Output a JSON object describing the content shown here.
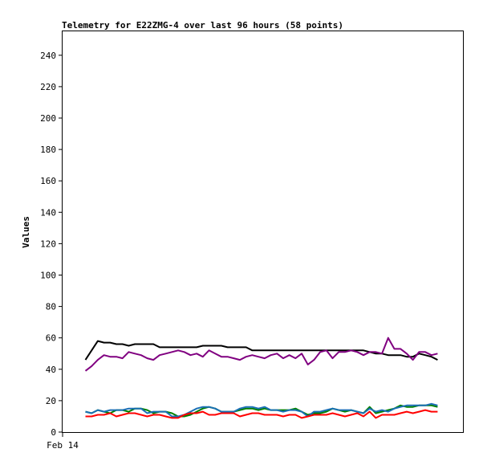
{
  "chart_data": {
    "type": "line",
    "title": "Telemetry for E22ZMG-4 over last 96 hours (58 points)",
    "xlabel": "",
    "ylabel": "Values",
    "ylim": [
      0,
      256
    ],
    "yticks": [
      0,
      20,
      40,
      60,
      80,
      100,
      120,
      140,
      160,
      180,
      200,
      220,
      240
    ],
    "x_tick_labels": [
      "Feb 14"
    ],
    "grid": false,
    "legend": "none",
    "x": [
      0,
      1,
      2,
      3,
      4,
      5,
      6,
      7,
      8,
      9,
      10,
      11,
      12,
      13,
      14,
      15,
      16,
      17,
      18,
      19,
      20,
      21,
      22,
      23,
      24,
      25,
      26,
      27,
      28,
      29,
      30,
      31,
      32,
      33,
      34,
      35,
      36,
      37,
      38,
      39,
      40,
      41,
      42,
      43,
      44,
      45,
      46,
      47,
      48,
      49,
      50,
      51,
      52,
      53,
      54,
      55,
      56,
      57
    ],
    "series": [
      {
        "color": "#000000",
        "values": [
          46,
          52,
          58,
          57,
          57,
          56,
          56,
          55,
          56,
          56,
          56,
          56,
          54,
          54,
          54,
          54,
          54,
          54,
          54,
          55,
          55,
          55,
          55,
          54,
          54,
          54,
          54,
          52,
          52,
          52,
          52,
          52,
          52,
          52,
          52,
          52,
          52,
          52,
          52,
          52,
          52,
          52,
          52,
          52,
          52,
          52,
          51,
          50,
          50,
          49,
          49,
          49,
          48,
          48,
          50,
          49,
          48,
          46
        ]
      },
      {
        "color": "#800080",
        "values": [
          39,
          42,
          46,
          49,
          48,
          48,
          47,
          51,
          50,
          49,
          47,
          46,
          49,
          50,
          51,
          52,
          51,
          49,
          50,
          48,
          52,
          50,
          48,
          48,
          47,
          46,
          48,
          49,
          48,
          47,
          49,
          50,
          47,
          49,
          47,
          50,
          43,
          46,
          51,
          52,
          47,
          51,
          51,
          52,
          51,
          49,
          51,
          51,
          50,
          60,
          53,
          53,
          50,
          46,
          51,
          51,
          49,
          50
        ]
      },
      {
        "color": "#008000",
        "values": [
          13,
          12,
          14,
          13,
          12,
          14,
          14,
          13,
          15,
          15,
          14,
          12,
          13,
          13,
          12,
          10,
          10,
          11,
          13,
          15,
          16,
          15,
          13,
          13,
          13,
          14,
          15,
          15,
          14,
          15,
          14,
          14,
          14,
          14,
          15,
          13,
          11,
          12,
          12,
          13,
          15,
          14,
          13,
          14,
          13,
          12,
          16,
          12,
          13,
          14,
          15,
          17,
          16,
          16,
          17,
          17,
          17,
          16
        ]
      },
      {
        "color": "#1a6fb5",
        "values": [
          13,
          12,
          14,
          13,
          14,
          14,
          14,
          15,
          15,
          15,
          12,
          13,
          13,
          13,
          10,
          10,
          11,
          13,
          15,
          16,
          16,
          15,
          13,
          13,
          13,
          15,
          16,
          16,
          15,
          16,
          14,
          14,
          13,
          14,
          14,
          13,
          10,
          13,
          13,
          14,
          15,
          14,
          14,
          14,
          13,
          12,
          15,
          13,
          14,
          13,
          15,
          16,
          17,
          17,
          17,
          17,
          18,
          17
        ]
      },
      {
        "color": "#ff0000",
        "values": [
          10,
          10,
          11,
          11,
          12,
          10,
          11,
          12,
          12,
          11,
          10,
          11,
          11,
          10,
          9,
          9,
          11,
          12,
          12,
          13,
          11,
          11,
          12,
          12,
          12,
          10,
          11,
          12,
          12,
          11,
          11,
          11,
          10,
          11,
          11,
          9,
          10,
          11,
          11,
          11,
          12,
          11,
          10,
          11,
          12,
          10,
          13,
          9,
          11,
          11,
          11,
          12,
          13,
          12,
          13,
          14,
          13,
          13
        ]
      }
    ]
  }
}
